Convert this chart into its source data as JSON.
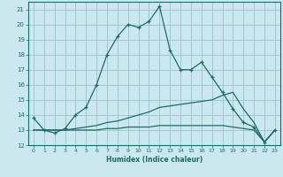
{
  "title": "",
  "xlabel": "Humidex (Indice chaleur)",
  "ylabel": "",
  "bg_color": "#cce8ef",
  "grid_color": "#a0c8d0",
  "line_color": "#1a6b6b",
  "xlim": [
    -0.5,
    23.5
  ],
  "ylim": [
    12,
    21.5
  ],
  "xticks": [
    0,
    1,
    2,
    3,
    4,
    5,
    6,
    7,
    8,
    9,
    10,
    11,
    12,
    13,
    14,
    15,
    16,
    17,
    18,
    19,
    20,
    21,
    22,
    23
  ],
  "yticks": [
    12,
    13,
    14,
    15,
    16,
    17,
    18,
    19,
    20,
    21
  ],
  "line1_x": [
    0,
    1,
    2,
    3,
    4,
    5,
    6,
    7,
    8,
    9,
    10,
    11,
    12,
    13,
    14,
    15,
    16,
    17,
    18,
    19,
    20,
    21,
    22,
    23
  ],
  "line1_y": [
    13.8,
    13.0,
    12.8,
    13.1,
    14.0,
    14.5,
    16.0,
    18.0,
    19.2,
    20.0,
    19.8,
    20.2,
    21.2,
    18.3,
    17.0,
    17.0,
    17.5,
    16.5,
    15.5,
    14.4,
    13.5,
    13.2,
    12.2,
    13.0
  ],
  "line2_x": [
    0,
    1,
    2,
    3,
    4,
    5,
    6,
    7,
    8,
    9,
    10,
    11,
    12,
    13,
    14,
    15,
    16,
    17,
    18,
    19,
    20,
    21,
    22,
    23
  ],
  "line2_y": [
    13.0,
    13.0,
    13.0,
    13.0,
    13.1,
    13.2,
    13.3,
    13.5,
    13.6,
    13.8,
    14.0,
    14.2,
    14.5,
    14.6,
    14.7,
    14.8,
    14.9,
    15.0,
    15.3,
    15.5,
    14.4,
    13.5,
    12.2,
    13.0
  ],
  "line3_x": [
    0,
    1,
    2,
    3,
    4,
    5,
    6,
    7,
    8,
    9,
    10,
    11,
    12,
    13,
    14,
    15,
    16,
    17,
    18,
    19,
    20,
    21,
    22,
    23
  ],
  "line3_y": [
    13.0,
    13.0,
    13.0,
    13.0,
    13.0,
    13.0,
    13.0,
    13.1,
    13.1,
    13.2,
    13.2,
    13.2,
    13.3,
    13.3,
    13.3,
    13.3,
    13.3,
    13.3,
    13.3,
    13.2,
    13.1,
    13.0,
    12.2,
    13.0
  ]
}
